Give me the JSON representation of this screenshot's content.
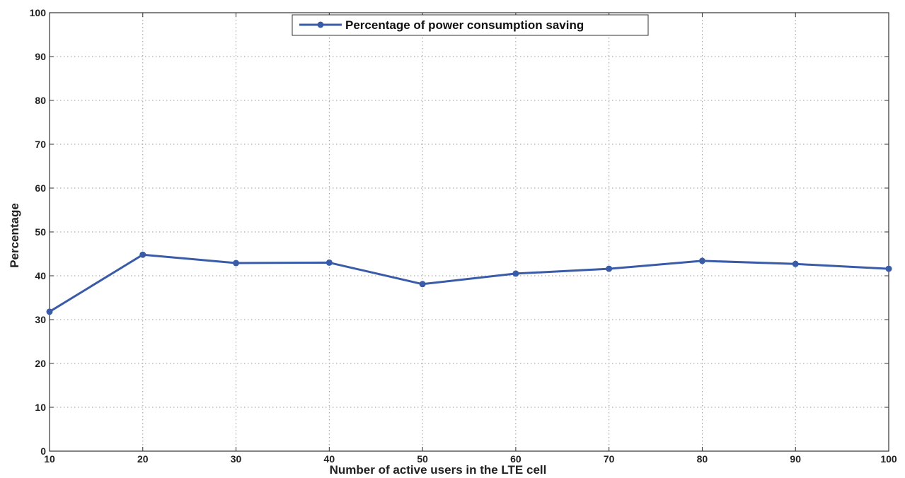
{
  "chart_data": {
    "type": "line",
    "title": "",
    "xlabel": "Number of active users in the LTE cell",
    "ylabel": "Percentage",
    "xlim": [
      10,
      100
    ],
    "ylim": [
      0,
      100
    ],
    "xticks": [
      "10",
      "20",
      "30",
      "40",
      "50",
      "60",
      "70",
      "80",
      "90",
      "100"
    ],
    "yticks": [
      "0",
      "10",
      "20",
      "30",
      "40",
      "50",
      "60",
      "70",
      "80",
      "90",
      "100"
    ],
    "grid": true,
    "legend_position": "top-center",
    "colors": {
      "series": "#3a5ba8",
      "grid": "#9a9a9a",
      "axis": "#333333"
    },
    "series": [
      {
        "name": "Percentage of power consumption saving",
        "marker": "circle",
        "x": [
          10,
          20,
          30,
          40,
          50,
          60,
          70,
          80,
          90,
          100
        ],
        "y": [
          31.8,
          44.8,
          42.9,
          43.0,
          38.1,
          40.5,
          41.6,
          43.4,
          42.7,
          41.6
        ]
      }
    ]
  }
}
